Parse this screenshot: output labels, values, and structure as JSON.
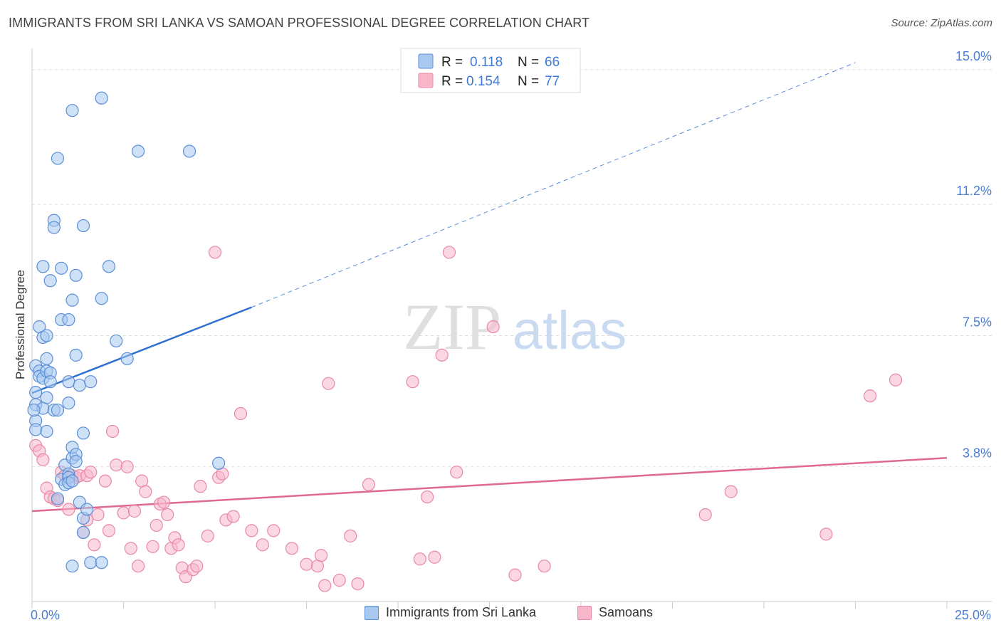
{
  "header": {
    "title": "IMMIGRANTS FROM SRI LANKA VS SAMOAN PROFESSIONAL DEGREE CORRELATION CHART",
    "source": "Source: ZipAtlas.com"
  },
  "watermark": {
    "zip": "ZIP",
    "atlas": "atlas"
  },
  "legend_top": [
    {
      "r_label": "R =",
      "r_value": "0.118",
      "n_label": "N =",
      "n_value": "66"
    },
    {
      "r_label": "R =",
      "r_value": "0.154",
      "n_label": "N =",
      "n_value": "77"
    }
  ],
  "legend_bottom": [
    {
      "label": "Immigrants from Sri Lanka"
    },
    {
      "label": "Samoans"
    }
  ],
  "colors": {
    "blue_fill": "#a8c8f0",
    "blue_stroke": "#5b8fd6",
    "blue_line": "#2e6fd0",
    "pink_fill": "#f7b6ca",
    "pink_stroke": "#e889a8",
    "pink_line": "#e0698f",
    "axis_text": "#4a7ed0",
    "grid": "#dddddd"
  },
  "chart_data": {
    "type": "scatter",
    "title": "IMMIGRANTS FROM SRI LANKA VS SAMOAN PROFESSIONAL DEGREE CORRELATION CHART",
    "xlabel": "",
    "ylabel": "Professional Degree",
    "xlim": [
      0,
      25
    ],
    "ylim": [
      0,
      15.4
    ],
    "x_tick_labels": [
      {
        "value": 0,
        "label": "0.0%"
      },
      {
        "value": 25,
        "label": "25.0%"
      }
    ],
    "y_tick_labels": [
      {
        "value": 3.8,
        "label": "3.8%"
      },
      {
        "value": 7.5,
        "label": "7.5%"
      },
      {
        "value": 11.2,
        "label": "11.2%"
      },
      {
        "value": 15.0,
        "label": "15.0%"
      }
    ],
    "series": [
      {
        "name": "Immigrants from Sri Lanka",
        "color": "#a8c8f0",
        "trend": {
          "x0": 0,
          "y0": 5.88,
          "x1": 6.0,
          "y1": 8.3,
          "dash_x1": 22.5,
          "dash_y1": 15.2
        },
        "points": [
          [
            0.1,
            6.65
          ],
          [
            0.1,
            5.9
          ],
          [
            0.1,
            5.55
          ],
          [
            0.1,
            5.1
          ],
          [
            0.1,
            4.85
          ],
          [
            0.2,
            7.75
          ],
          [
            0.2,
            6.5
          ],
          [
            0.2,
            6.35
          ],
          [
            0.3,
            7.45
          ],
          [
            0.3,
            5.45
          ],
          [
            0.3,
            6.3
          ],
          [
            0.3,
            9.45
          ],
          [
            0.4,
            7.5
          ],
          [
            0.4,
            6.85
          ],
          [
            0.4,
            6.5
          ],
          [
            0.4,
            5.75
          ],
          [
            0.4,
            4.8
          ],
          [
            0.5,
            6.45
          ],
          [
            0.5,
            6.2
          ],
          [
            0.5,
            9.05
          ],
          [
            0.6,
            10.75
          ],
          [
            0.6,
            10.55
          ],
          [
            0.6,
            5.4
          ],
          [
            0.7,
            12.5
          ],
          [
            0.7,
            5.4
          ],
          [
            0.7,
            2.9
          ],
          [
            0.8,
            9.4
          ],
          [
            0.8,
            7.95
          ],
          [
            0.8,
            3.45
          ],
          [
            0.9,
            3.3
          ],
          [
            0.9,
            3.85
          ],
          [
            1.0,
            5.6
          ],
          [
            1.0,
            3.6
          ],
          [
            1.0,
            3.5
          ],
          [
            1.0,
            3.35
          ],
          [
            1.0,
            7.95
          ],
          [
            1.0,
            6.2
          ],
          [
            1.1,
            4.05
          ],
          [
            1.1,
            4.35
          ],
          [
            1.1,
            3.4
          ],
          [
            1.1,
            1.0
          ],
          [
            1.1,
            13.85
          ],
          [
            1.1,
            8.5
          ],
          [
            1.2,
            6.95
          ],
          [
            1.2,
            9.2
          ],
          [
            1.2,
            4.15
          ],
          [
            1.2,
            3.95
          ],
          [
            1.3,
            2.8
          ],
          [
            1.3,
            6.1
          ],
          [
            1.4,
            10.6
          ],
          [
            1.4,
            4.75
          ],
          [
            1.4,
            2.35
          ],
          [
            1.4,
            1.95
          ],
          [
            1.5,
            2.6
          ],
          [
            1.6,
            1.1
          ],
          [
            1.6,
            6.2
          ],
          [
            1.9,
            14.2
          ],
          [
            1.9,
            8.55
          ],
          [
            1.9,
            1.1
          ],
          [
            2.1,
            9.45
          ],
          [
            2.3,
            7.35
          ],
          [
            2.6,
            6.85
          ],
          [
            2.9,
            12.7
          ],
          [
            4.3,
            12.7
          ],
          [
            5.1,
            3.9
          ],
          [
            0.05,
            5.4
          ]
        ]
      },
      {
        "name": "Samoans",
        "color": "#f7b6ca",
        "trend": {
          "x0": 0,
          "y0": 2.55,
          "x1": 25,
          "y1": 4.05
        },
        "points": [
          [
            0.1,
            4.4
          ],
          [
            0.2,
            4.25
          ],
          [
            0.3,
            4.0
          ],
          [
            0.4,
            3.2
          ],
          [
            0.5,
            2.95
          ],
          [
            0.6,
            2.9
          ],
          [
            0.7,
            2.85
          ],
          [
            0.8,
            3.65
          ],
          [
            0.9,
            3.55
          ],
          [
            1.0,
            2.6
          ],
          [
            1.1,
            3.55
          ],
          [
            1.2,
            3.5
          ],
          [
            1.3,
            3.55
          ],
          [
            1.4,
            1.95
          ],
          [
            1.5,
            3.55
          ],
          [
            1.5,
            2.3
          ],
          [
            1.6,
            3.65
          ],
          [
            1.7,
            1.6
          ],
          [
            1.8,
            2.45
          ],
          [
            2.0,
            3.4
          ],
          [
            2.1,
            2.0
          ],
          [
            2.2,
            4.8
          ],
          [
            2.3,
            3.85
          ],
          [
            2.5,
            2.5
          ],
          [
            2.6,
            3.8
          ],
          [
            2.7,
            1.5
          ],
          [
            2.8,
            2.55
          ],
          [
            2.9,
            1.0
          ],
          [
            3.0,
            3.4
          ],
          [
            3.1,
            3.1
          ],
          [
            3.3,
            1.55
          ],
          [
            3.4,
            2.15
          ],
          [
            3.5,
            2.75
          ],
          [
            3.6,
            2.8
          ],
          [
            3.7,
            2.45
          ],
          [
            3.8,
            1.5
          ],
          [
            3.9,
            1.8
          ],
          [
            4.0,
            1.6
          ],
          [
            4.1,
            0.95
          ],
          [
            4.2,
            0.7
          ],
          [
            4.4,
            0.9
          ],
          [
            4.5,
            1.0
          ],
          [
            4.6,
            3.25
          ],
          [
            4.8,
            1.85
          ],
          [
            5.0,
            9.85
          ],
          [
            5.1,
            3.5
          ],
          [
            5.2,
            3.6
          ],
          [
            5.3,
            2.3
          ],
          [
            5.5,
            2.4
          ],
          [
            5.7,
            5.3
          ],
          [
            6.0,
            2.0
          ],
          [
            6.3,
            1.6
          ],
          [
            6.6,
            2.0
          ],
          [
            7.1,
            1.5
          ],
          [
            7.5,
            1.05
          ],
          [
            7.8,
            1.0
          ],
          [
            7.9,
            1.3
          ],
          [
            8.0,
            0.45
          ],
          [
            8.1,
            6.15
          ],
          [
            8.4,
            0.6
          ],
          [
            8.7,
            1.85
          ],
          [
            8.9,
            0.5
          ],
          [
            9.2,
            3.3
          ],
          [
            10.4,
            6.2
          ],
          [
            10.6,
            1.2
          ],
          [
            10.8,
            2.95
          ],
          [
            11.0,
            1.25
          ],
          [
            11.2,
            6.95
          ],
          [
            11.4,
            9.85
          ],
          [
            11.6,
            3.65
          ],
          [
            12.6,
            7.75
          ],
          [
            13.2,
            0.75
          ],
          [
            14.0,
            1.0
          ],
          [
            18.4,
            2.45
          ],
          [
            19.1,
            3.1
          ],
          [
            21.7,
            1.9
          ],
          [
            22.9,
            5.8
          ],
          [
            23.6,
            6.25
          ]
        ]
      }
    ]
  }
}
